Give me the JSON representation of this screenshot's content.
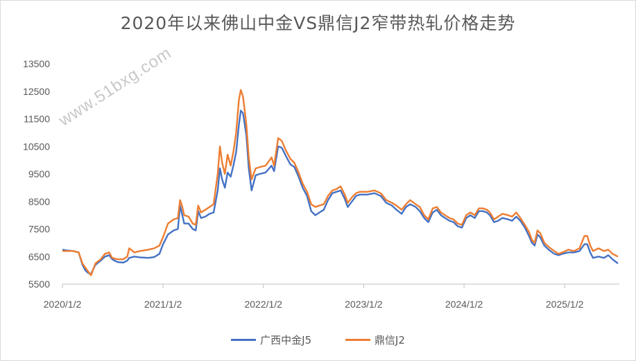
{
  "chart_data": {
    "type": "line",
    "title": "2020年以来佛山中金VS鼎信J2窄带热轧价格走势",
    "watermark": "www.51bxg.com",
    "xlabel": "",
    "ylabel": "",
    "ylim": [
      5500,
      13500
    ],
    "yticks": [
      "13500",
      "12500",
      "11500",
      "10500",
      "9500",
      "8500",
      "7500",
      "6500",
      "5500"
    ],
    "xlim": [
      "2020-01-02",
      "2025-07-20"
    ],
    "xticks": [
      {
        "date": "2020-01-02",
        "label": "2020/1/2"
      },
      {
        "date": "2021-01-02",
        "label": "2021/1/2"
      },
      {
        "date": "2022-01-02",
        "label": "2022/1/2"
      },
      {
        "date": "2023-01-02",
        "label": "2023/1/2"
      },
      {
        "date": "2024-01-02",
        "label": "2024/1/2"
      },
      {
        "date": "2025-01-02",
        "label": "2025/1/2"
      }
    ],
    "grid": false,
    "legend": "bottom",
    "series": [
      {
        "name": "广西中金J5",
        "color": "#4472C4",
        "points": [
          [
            "2020-01-02",
            6750
          ],
          [
            "2020-01-20",
            6720
          ],
          [
            "2020-02-10",
            6700
          ],
          [
            "2020-03-01",
            6650
          ],
          [
            "2020-03-15",
            6200
          ],
          [
            "2020-03-25",
            6000
          ],
          [
            "2020-04-05",
            5900
          ],
          [
            "2020-04-15",
            5870
          ],
          [
            "2020-05-01",
            6200
          ],
          [
            "2020-05-20",
            6350
          ],
          [
            "2020-06-05",
            6500
          ],
          [
            "2020-06-20",
            6550
          ],
          [
            "2020-07-01",
            6400
          ],
          [
            "2020-07-20",
            6300
          ],
          [
            "2020-08-10",
            6280
          ],
          [
            "2020-08-25",
            6350
          ],
          [
            "2020-09-01",
            6450
          ],
          [
            "2020-09-20",
            6500
          ],
          [
            "2020-10-10",
            6470
          ],
          [
            "2020-11-10",
            6450
          ],
          [
            "2020-12-01",
            6480
          ],
          [
            "2020-12-20",
            6600
          ],
          [
            "2021-01-02",
            6950
          ],
          [
            "2021-01-20",
            7300
          ],
          [
            "2021-02-10",
            7450
          ],
          [
            "2021-02-25",
            7500
          ],
          [
            "2021-03-05",
            8350
          ],
          [
            "2021-03-12",
            8050
          ],
          [
            "2021-03-20",
            7700
          ],
          [
            "2021-04-05",
            7700
          ],
          [
            "2021-04-20",
            7500
          ],
          [
            "2021-05-01",
            7450
          ],
          [
            "2021-05-10",
            8150
          ],
          [
            "2021-05-20",
            7900
          ],
          [
            "2021-06-05",
            7950
          ],
          [
            "2021-06-20",
            8050
          ],
          [
            "2021-07-05",
            8100
          ],
          [
            "2021-07-20",
            8900
          ],
          [
            "2021-07-28",
            9700
          ],
          [
            "2021-08-05",
            9300
          ],
          [
            "2021-08-15",
            9000
          ],
          [
            "2021-08-25",
            9550
          ],
          [
            "2021-09-05",
            9400
          ],
          [
            "2021-09-15",
            9800
          ],
          [
            "2021-09-25",
            10300
          ],
          [
            "2021-10-05",
            11300
          ],
          [
            "2021-10-12",
            11800
          ],
          [
            "2021-10-20",
            11700
          ],
          [
            "2021-11-01",
            10900
          ],
          [
            "2021-11-10",
            9700
          ],
          [
            "2021-11-20",
            8900
          ],
          [
            "2021-12-05",
            9450
          ],
          [
            "2021-12-20",
            9500
          ],
          [
            "2022-01-10",
            9550
          ],
          [
            "2022-02-01",
            9800
          ],
          [
            "2022-02-10",
            9600
          ],
          [
            "2022-02-25",
            10500
          ],
          [
            "2022-03-10",
            10450
          ],
          [
            "2022-03-25",
            10150
          ],
          [
            "2022-04-10",
            9850
          ],
          [
            "2022-04-25",
            9750
          ],
          [
            "2022-05-10",
            9400
          ],
          [
            "2022-05-25",
            9000
          ],
          [
            "2022-06-10",
            8700
          ],
          [
            "2022-06-25",
            8150
          ],
          [
            "2022-07-10",
            8000
          ],
          [
            "2022-07-25",
            8100
          ],
          [
            "2022-08-10",
            8200
          ],
          [
            "2022-08-25",
            8550
          ],
          [
            "2022-09-10",
            8800
          ],
          [
            "2022-09-25",
            8850
          ],
          [
            "2022-10-10",
            8900
          ],
          [
            "2022-10-25",
            8600
          ],
          [
            "2022-11-05",
            8300
          ],
          [
            "2022-11-20",
            8500
          ],
          [
            "2022-12-05",
            8700
          ],
          [
            "2022-12-20",
            8750
          ],
          [
            "2023-01-15",
            8750
          ],
          [
            "2023-02-10",
            8800
          ],
          [
            "2023-03-05",
            8700
          ],
          [
            "2023-03-25",
            8450
          ],
          [
            "2023-04-15",
            8350
          ],
          [
            "2023-05-01",
            8200
          ],
          [
            "2023-05-20",
            8050
          ],
          [
            "2023-06-05",
            8300
          ],
          [
            "2023-06-20",
            8400
          ],
          [
            "2023-07-10",
            8300
          ],
          [
            "2023-07-25",
            8150
          ],
          [
            "2023-08-10",
            7900
          ],
          [
            "2023-08-25",
            7750
          ],
          [
            "2023-09-10",
            8100
          ],
          [
            "2023-09-25",
            8200
          ],
          [
            "2023-10-10",
            8000
          ],
          [
            "2023-10-25",
            7900
          ],
          [
            "2023-11-10",
            7800
          ],
          [
            "2023-11-25",
            7750
          ],
          [
            "2023-12-10",
            7600
          ],
          [
            "2023-12-25",
            7550
          ],
          [
            "2024-01-10",
            7900
          ],
          [
            "2024-01-25",
            8000
          ],
          [
            "2024-02-10",
            7900
          ],
          [
            "2024-02-25",
            8150
          ],
          [
            "2024-03-10",
            8150
          ],
          [
            "2024-03-25",
            8100
          ],
          [
            "2024-04-05",
            8000
          ],
          [
            "2024-04-20",
            7750
          ],
          [
            "2024-05-05",
            7800
          ],
          [
            "2024-05-20",
            7900
          ],
          [
            "2024-06-10",
            7850
          ],
          [
            "2024-06-25",
            7800
          ],
          [
            "2024-07-10",
            7950
          ],
          [
            "2024-07-25",
            7800
          ],
          [
            "2024-08-10",
            7550
          ],
          [
            "2024-08-25",
            7250
          ],
          [
            "2024-09-05",
            7000
          ],
          [
            "2024-09-15",
            6900
          ],
          [
            "2024-09-25",
            7300
          ],
          [
            "2024-10-05",
            7200
          ],
          [
            "2024-10-20",
            6900
          ],
          [
            "2024-11-05",
            6750
          ],
          [
            "2024-11-25",
            6600
          ],
          [
            "2024-12-10",
            6550
          ],
          [
            "2024-12-25",
            6600
          ],
          [
            "2025-01-15",
            6650
          ],
          [
            "2025-02-05",
            6650
          ],
          [
            "2025-02-25",
            6700
          ],
          [
            "2025-03-15",
            6950
          ],
          [
            "2025-03-25",
            6950
          ],
          [
            "2025-04-05",
            6650
          ],
          [
            "2025-04-15",
            6450
          ],
          [
            "2025-05-05",
            6500
          ],
          [
            "2025-05-25",
            6450
          ],
          [
            "2025-06-10",
            6550
          ],
          [
            "2025-06-25",
            6400
          ],
          [
            "2025-07-15",
            6250
          ]
        ]
      },
      {
        "name": "鼎信J2",
        "color": "#ED7D31",
        "points": [
          [
            "2020-01-02",
            6700
          ],
          [
            "2020-01-20",
            6700
          ],
          [
            "2020-02-10",
            6700
          ],
          [
            "2020-03-01",
            6650
          ],
          [
            "2020-03-15",
            6250
          ],
          [
            "2020-03-25",
            6100
          ],
          [
            "2020-04-05",
            5950
          ],
          [
            "2020-04-15",
            5820
          ],
          [
            "2020-05-01",
            6250
          ],
          [
            "2020-05-20",
            6400
          ],
          [
            "2020-06-05",
            6600
          ],
          [
            "2020-06-20",
            6650
          ],
          [
            "2020-07-01",
            6450
          ],
          [
            "2020-07-20",
            6400
          ],
          [
            "2020-08-10",
            6400
          ],
          [
            "2020-08-25",
            6500
          ],
          [
            "2020-09-01",
            6800
          ],
          [
            "2020-09-20",
            6650
          ],
          [
            "2020-10-10",
            6700
          ],
          [
            "2020-11-10",
            6750
          ],
          [
            "2020-12-01",
            6800
          ],
          [
            "2020-12-20",
            6900
          ],
          [
            "2021-01-02",
            7200
          ],
          [
            "2021-01-20",
            7700
          ],
          [
            "2021-02-10",
            7850
          ],
          [
            "2021-02-25",
            7900
          ],
          [
            "2021-03-05",
            8550
          ],
          [
            "2021-03-12",
            8350
          ],
          [
            "2021-03-20",
            8000
          ],
          [
            "2021-04-05",
            7950
          ],
          [
            "2021-04-20",
            7700
          ],
          [
            "2021-05-01",
            7650
          ],
          [
            "2021-05-10",
            8350
          ],
          [
            "2021-05-20",
            8100
          ],
          [
            "2021-06-05",
            8200
          ],
          [
            "2021-06-20",
            8300
          ],
          [
            "2021-07-05",
            8400
          ],
          [
            "2021-07-20",
            9500
          ],
          [
            "2021-07-28",
            10500
          ],
          [
            "2021-08-05",
            9900
          ],
          [
            "2021-08-15",
            9500
          ],
          [
            "2021-08-25",
            10200
          ],
          [
            "2021-09-05",
            9800
          ],
          [
            "2021-09-15",
            10300
          ],
          [
            "2021-09-25",
            11000
          ],
          [
            "2021-10-05",
            12200
          ],
          [
            "2021-10-12",
            12550
          ],
          [
            "2021-10-20",
            12300
          ],
          [
            "2021-11-01",
            11300
          ],
          [
            "2021-11-10",
            10100
          ],
          [
            "2021-11-20",
            9300
          ],
          [
            "2021-12-05",
            9700
          ],
          [
            "2021-12-20",
            9750
          ],
          [
            "2022-01-10",
            9800
          ],
          [
            "2022-02-01",
            10100
          ],
          [
            "2022-02-10",
            9800
          ],
          [
            "2022-02-25",
            10800
          ],
          [
            "2022-03-10",
            10700
          ],
          [
            "2022-03-25",
            10350
          ],
          [
            "2022-04-10",
            10050
          ],
          [
            "2022-04-25",
            9900
          ],
          [
            "2022-05-10",
            9550
          ],
          [
            "2022-05-25",
            9150
          ],
          [
            "2022-06-10",
            8850
          ],
          [
            "2022-06-25",
            8400
          ],
          [
            "2022-07-10",
            8300
          ],
          [
            "2022-07-25",
            8350
          ],
          [
            "2022-08-10",
            8400
          ],
          [
            "2022-08-25",
            8700
          ],
          [
            "2022-09-10",
            8900
          ],
          [
            "2022-09-25",
            8950
          ],
          [
            "2022-10-10",
            9050
          ],
          [
            "2022-10-25",
            8750
          ],
          [
            "2022-11-05",
            8450
          ],
          [
            "2022-11-20",
            8650
          ],
          [
            "2022-12-05",
            8800
          ],
          [
            "2022-12-20",
            8850
          ],
          [
            "2023-01-15",
            8850
          ],
          [
            "2023-02-10",
            8900
          ],
          [
            "2023-03-05",
            8800
          ],
          [
            "2023-03-25",
            8550
          ],
          [
            "2023-04-15",
            8450
          ],
          [
            "2023-05-01",
            8350
          ],
          [
            "2023-05-20",
            8200
          ],
          [
            "2023-06-05",
            8400
          ],
          [
            "2023-06-20",
            8550
          ],
          [
            "2023-07-10",
            8400
          ],
          [
            "2023-07-25",
            8300
          ],
          [
            "2023-08-10",
            8000
          ],
          [
            "2023-08-25",
            7850
          ],
          [
            "2023-09-10",
            8250
          ],
          [
            "2023-09-25",
            8300
          ],
          [
            "2023-10-10",
            8100
          ],
          [
            "2023-10-25",
            8000
          ],
          [
            "2023-11-10",
            7900
          ],
          [
            "2023-11-25",
            7850
          ],
          [
            "2023-12-10",
            7700
          ],
          [
            "2023-12-25",
            7650
          ],
          [
            "2024-01-10",
            8000
          ],
          [
            "2024-01-25",
            8100
          ],
          [
            "2024-02-10",
            8000
          ],
          [
            "2024-02-25",
            8250
          ],
          [
            "2024-03-10",
            8250
          ],
          [
            "2024-03-25",
            8200
          ],
          [
            "2024-04-05",
            8100
          ],
          [
            "2024-04-20",
            7850
          ],
          [
            "2024-05-05",
            7950
          ],
          [
            "2024-05-20",
            8050
          ],
          [
            "2024-06-10",
            8000
          ],
          [
            "2024-06-25",
            7950
          ],
          [
            "2024-07-10",
            8100
          ],
          [
            "2024-07-25",
            7900
          ],
          [
            "2024-08-10",
            7650
          ],
          [
            "2024-08-25",
            7400
          ],
          [
            "2024-09-05",
            7100
          ],
          [
            "2024-09-15",
            7000
          ],
          [
            "2024-09-25",
            7450
          ],
          [
            "2024-10-05",
            7350
          ],
          [
            "2024-10-20",
            7000
          ],
          [
            "2024-11-05",
            6850
          ],
          [
            "2024-11-25",
            6700
          ],
          [
            "2024-12-10",
            6600
          ],
          [
            "2024-12-25",
            6650
          ],
          [
            "2025-01-15",
            6750
          ],
          [
            "2025-02-05",
            6700
          ],
          [
            "2025-02-25",
            6800
          ],
          [
            "2025-03-15",
            7250
          ],
          [
            "2025-03-25",
            7250
          ],
          [
            "2025-04-05",
            6900
          ],
          [
            "2025-04-15",
            6700
          ],
          [
            "2025-05-05",
            6800
          ],
          [
            "2025-05-25",
            6700
          ],
          [
            "2025-06-10",
            6750
          ],
          [
            "2025-06-25",
            6600
          ],
          [
            "2025-07-15",
            6500
          ]
        ]
      }
    ]
  }
}
